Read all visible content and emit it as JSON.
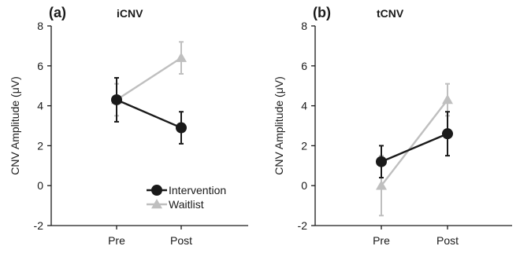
{
  "chart_data": [
    {
      "type": "line",
      "panel_label": "(a)",
      "title": "iCNV",
      "xlabel": "",
      "ylabel": "CNV Amplitude (μV)",
      "categories": [
        "Pre",
        "Post"
      ],
      "ylim": [
        -2,
        8
      ],
      "yticks": [
        -2,
        0,
        2,
        4,
        6,
        8
      ],
      "legend": {
        "placement": "bottom-right",
        "entries": [
          "Intervention",
          "Waitlist"
        ]
      },
      "series": [
        {
          "name": "Intervention",
          "color": "#1a1a1a",
          "marker": "circle",
          "values": [
            4.3,
            2.9
          ],
          "err": [
            1.1,
            0.8
          ]
        },
        {
          "name": "Waitlist",
          "color": "#bfbfbf",
          "marker": "triangle",
          "values": [
            4.3,
            6.4
          ],
          "err": [
            0.8,
            0.8
          ]
        }
      ]
    },
    {
      "type": "line",
      "panel_label": "(b)",
      "title": "tCNV",
      "xlabel": "",
      "ylabel": "CNV Amplitude (μV)",
      "categories": [
        "Pre",
        "Post"
      ],
      "ylim": [
        -2,
        8
      ],
      "yticks": [
        -2,
        0,
        2,
        4,
        6,
        8
      ],
      "series": [
        {
          "name": "Intervention",
          "color": "#1a1a1a",
          "marker": "circle",
          "values": [
            1.2,
            2.6
          ],
          "err": [
            0.8,
            1.1
          ]
        },
        {
          "name": "Waitlist",
          "color": "#bfbfbf",
          "marker": "triangle",
          "values": [
            0.0,
            4.3
          ],
          "err": [
            1.5,
            0.8
          ]
        }
      ]
    }
  ]
}
